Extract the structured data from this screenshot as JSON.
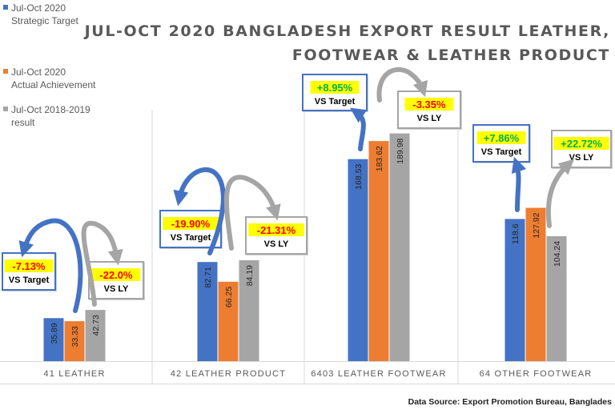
{
  "title_line1": "JUL-OCT 2020 BANGLADESH EXPORT RESULT LEATHER,",
  "title_line2": "FOOTWEAR & LEATHER PRODUCT",
  "source": "Data Source: Export Promotion Bureau, Banglades",
  "colors": {
    "target": "#4472C4",
    "actual": "#ED7D31",
    "last_year": "#A5A5A5",
    "badge_text": "#FF0000",
    "badge_bg": "#FFFF00",
    "positive_text": "#00B050"
  },
  "chart_data": {
    "type": "bar",
    "categories": [
      "41 LEATHER",
      "42 LEATHER PRODUCT",
      "6403 LEATHER FOOTWEAR",
      "64 OTHER FOOTWEAR"
    ],
    "series": [
      {
        "name": "Jul-Oct 2020 Strategic Target",
        "values": [
          35.89,
          82.71,
          168.53,
          118.6
        ]
      },
      {
        "name": "Jul-Oct 2020 Actual Achievement",
        "values": [
          33.33,
          66.25,
          183.62,
          127.92
        ]
      },
      {
        "name": "Jul-Oct 2018-2019 result",
        "values": [
          42.73,
          84.19,
          189.98,
          104.24
        ]
      }
    ],
    "legend_lines": [
      [
        "Jul-Oct 2020",
        "Strategic Target"
      ],
      [
        "Jul-Oct 2020",
        "Actual Achievement"
      ],
      [
        "Jul-Oct 2018-2019",
        "result"
      ]
    ],
    "vs_target": [
      "-7.13%",
      "-19.90%",
      "+8.95%",
      "+7.86%"
    ],
    "vs_target_label": "VS Target",
    "vs_ly": [
      "-22.0%",
      "-21.31%",
      "-3.35%",
      "+22.72%"
    ],
    "vs_ly_label": "VS LY",
    "legend_position": "top-left",
    "grid": false
  }
}
